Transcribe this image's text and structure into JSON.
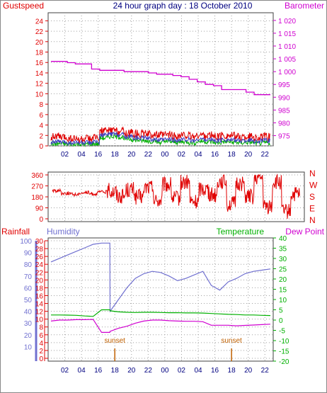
{
  "title": "24 hour graph day : 18 October 2010",
  "colors": {
    "red": "#e00000",
    "magenta": "#d000d0",
    "blue": "#4040c0",
    "green": "#00b000",
    "darkgreen": "#008000",
    "humidity": "#7070d0",
    "navy": "#000080",
    "sunset": "#c06000",
    "grid": "#a0a0a0"
  },
  "x_tick_labels": [
    "02",
    "04",
    "16",
    "18",
    "20",
    "22",
    "00",
    "02",
    "04",
    "16",
    "18",
    "20",
    "22"
  ],
  "chart_data": [
    {
      "type": "line",
      "panel": "wind-barometer",
      "left_axis_label": "Gustspeed",
      "right_axis_label": "Barometer",
      "left_ticks": [
        "0",
        "2",
        "4",
        "6",
        "8",
        "10",
        "12",
        "14",
        "16",
        "18",
        "20",
        "22",
        "24"
      ],
      "right_ticks": [
        "975",
        "980",
        "985",
        "990",
        "995",
        "1 000",
        "1 005",
        "1 010",
        "1 015",
        "1 020"
      ],
      "ylim_left": [
        0,
        25
      ],
      "ylim_right": [
        971,
        1023
      ],
      "series": [
        {
          "role": "barometer",
          "color": "magenta",
          "axis": "right",
          "values": [
            1004,
            1004,
            1003.5,
            1003,
            1003,
            1001,
            1000.5,
            1000.5,
            1000.5,
            1000,
            1000,
            1000,
            999.5,
            999,
            999,
            998.5,
            998,
            997,
            996,
            995,
            994.5,
            993,
            993,
            993,
            992,
            991,
            991
          ]
        },
        {
          "role": "gustspeed",
          "color": "red",
          "axis": "left",
          "values": [
            1.8,
            1.6,
            1.4,
            1.2,
            1.3,
            1.5,
            2.8,
            3,
            2.9,
            2.5,
            2.4,
            2.3,
            2.2,
            2,
            2.1,
            1.9,
            2,
            1.8,
            2.1,
            2,
            1.8,
            2,
            1.9,
            1.7,
            1.8,
            1.6,
            1.7
          ]
        },
        {
          "role": "avgspeed",
          "color": "green",
          "axis": "left",
          "values": [
            0.4,
            0.4,
            0.3,
            0.3,
            0.3,
            0.4,
            1.5,
            1.8,
            1.7,
            1.3,
            1.1,
            1,
            0.9,
            0.7,
            0.8,
            0.7,
            0.8,
            0.6,
            0.9,
            0.8,
            0.6,
            0.8,
            0.7,
            0.6,
            0.7,
            0.5,
            0.6
          ]
        },
        {
          "role": "windspeed",
          "color": "blue",
          "axis": "left",
          "values": [
            0.8,
            0.7,
            0.6,
            0.6,
            0.6,
            0.7,
            2,
            2.3,
            2.2,
            1.8,
            1.6,
            1.5,
            1.3,
            1.1,
            1.2,
            1.1,
            1.2,
            1,
            1.3,
            1.2,
            1,
            1.2,
            1.1,
            1,
            1.1,
            0.9,
            1
          ]
        }
      ]
    },
    {
      "type": "scatter",
      "panel": "wind-direction",
      "left_ticks": [
        "0",
        "90",
        "180",
        "270",
        "360"
      ],
      "right_labels": [
        "N",
        "W",
        "S",
        "E",
        "N"
      ],
      "ylim": [
        0,
        360
      ],
      "series": [
        {
          "role": "direction",
          "color": "red",
          "values": [
            230,
            210,
            200,
            215,
            205,
            220,
            230,
            190,
            240,
            180,
            260,
            150,
            280,
            170,
            300,
            140,
            250,
            200,
            310,
            120,
            290,
            180,
            330,
            100,
            300,
            60,
            200
          ]
        }
      ]
    },
    {
      "type": "line",
      "panel": "humidity-temperature",
      "left_axis_labels": [
        "Rainfall",
        "Humidity"
      ],
      "right_axis_labels": [
        "Temperature",
        "Dew Point"
      ],
      "rain_ticks": [
        "0",
        "2",
        "4",
        "6",
        "8",
        "10",
        "12",
        "14",
        "16",
        "18",
        "20",
        "22",
        "24",
        "26",
        "28",
        "30"
      ],
      "humidity_ticks": [
        "10",
        "20",
        "30",
        "40",
        "50",
        "60",
        "70",
        "80",
        "90",
        "100"
      ],
      "temp_ticks": [
        "-20",
        "-15",
        "-10",
        "-5",
        "0",
        "5",
        "10",
        "15",
        "20",
        "25",
        "30",
        "35",
        "40"
      ],
      "ylim_temp": [
        -20,
        40
      ],
      "annotations": [
        {
          "label": "sunset",
          "x_index": 3
        },
        {
          "label": "sunset",
          "x_index": 10
        }
      ],
      "series": [
        {
          "role": "humidity",
          "color": "humidity",
          "axis": "humidity",
          "values": [
            82,
            85,
            88,
            91,
            94,
            97,
            98,
            40,
            50,
            60,
            68,
            72,
            74,
            73,
            70,
            66,
            68,
            71,
            74,
            62,
            58,
            65,
            68,
            72,
            74,
            75,
            76
          ]
        },
        {
          "role": "temperature",
          "color": "green",
          "axis": "temp",
          "values": [
            2.5,
            2.5,
            2.4,
            2.3,
            2,
            1.8,
            5,
            4.5,
            4,
            3.8,
            3.7,
            3.8,
            3.8,
            3.7,
            3.6,
            3.6,
            3.5,
            3.5,
            3.4,
            3.2,
            3,
            2.8,
            2.7,
            2.5,
            2.5,
            2.3,
            2.2
          ]
        },
        {
          "role": "dewpoint",
          "color": "magenta",
          "axis": "temp",
          "values": [
            -0.5,
            0,
            0,
            0.2,
            0.2,
            0.3,
            -6,
            -5.5,
            -4,
            -3,
            -1.5,
            -0.5,
            0,
            0,
            -0.3,
            -0.5,
            -0.6,
            -0.6,
            -0.8,
            -2.5,
            -2.5,
            -2.5,
            -2.8,
            -2.6,
            -2.4,
            -2.2,
            -2
          ]
        }
      ]
    }
  ]
}
